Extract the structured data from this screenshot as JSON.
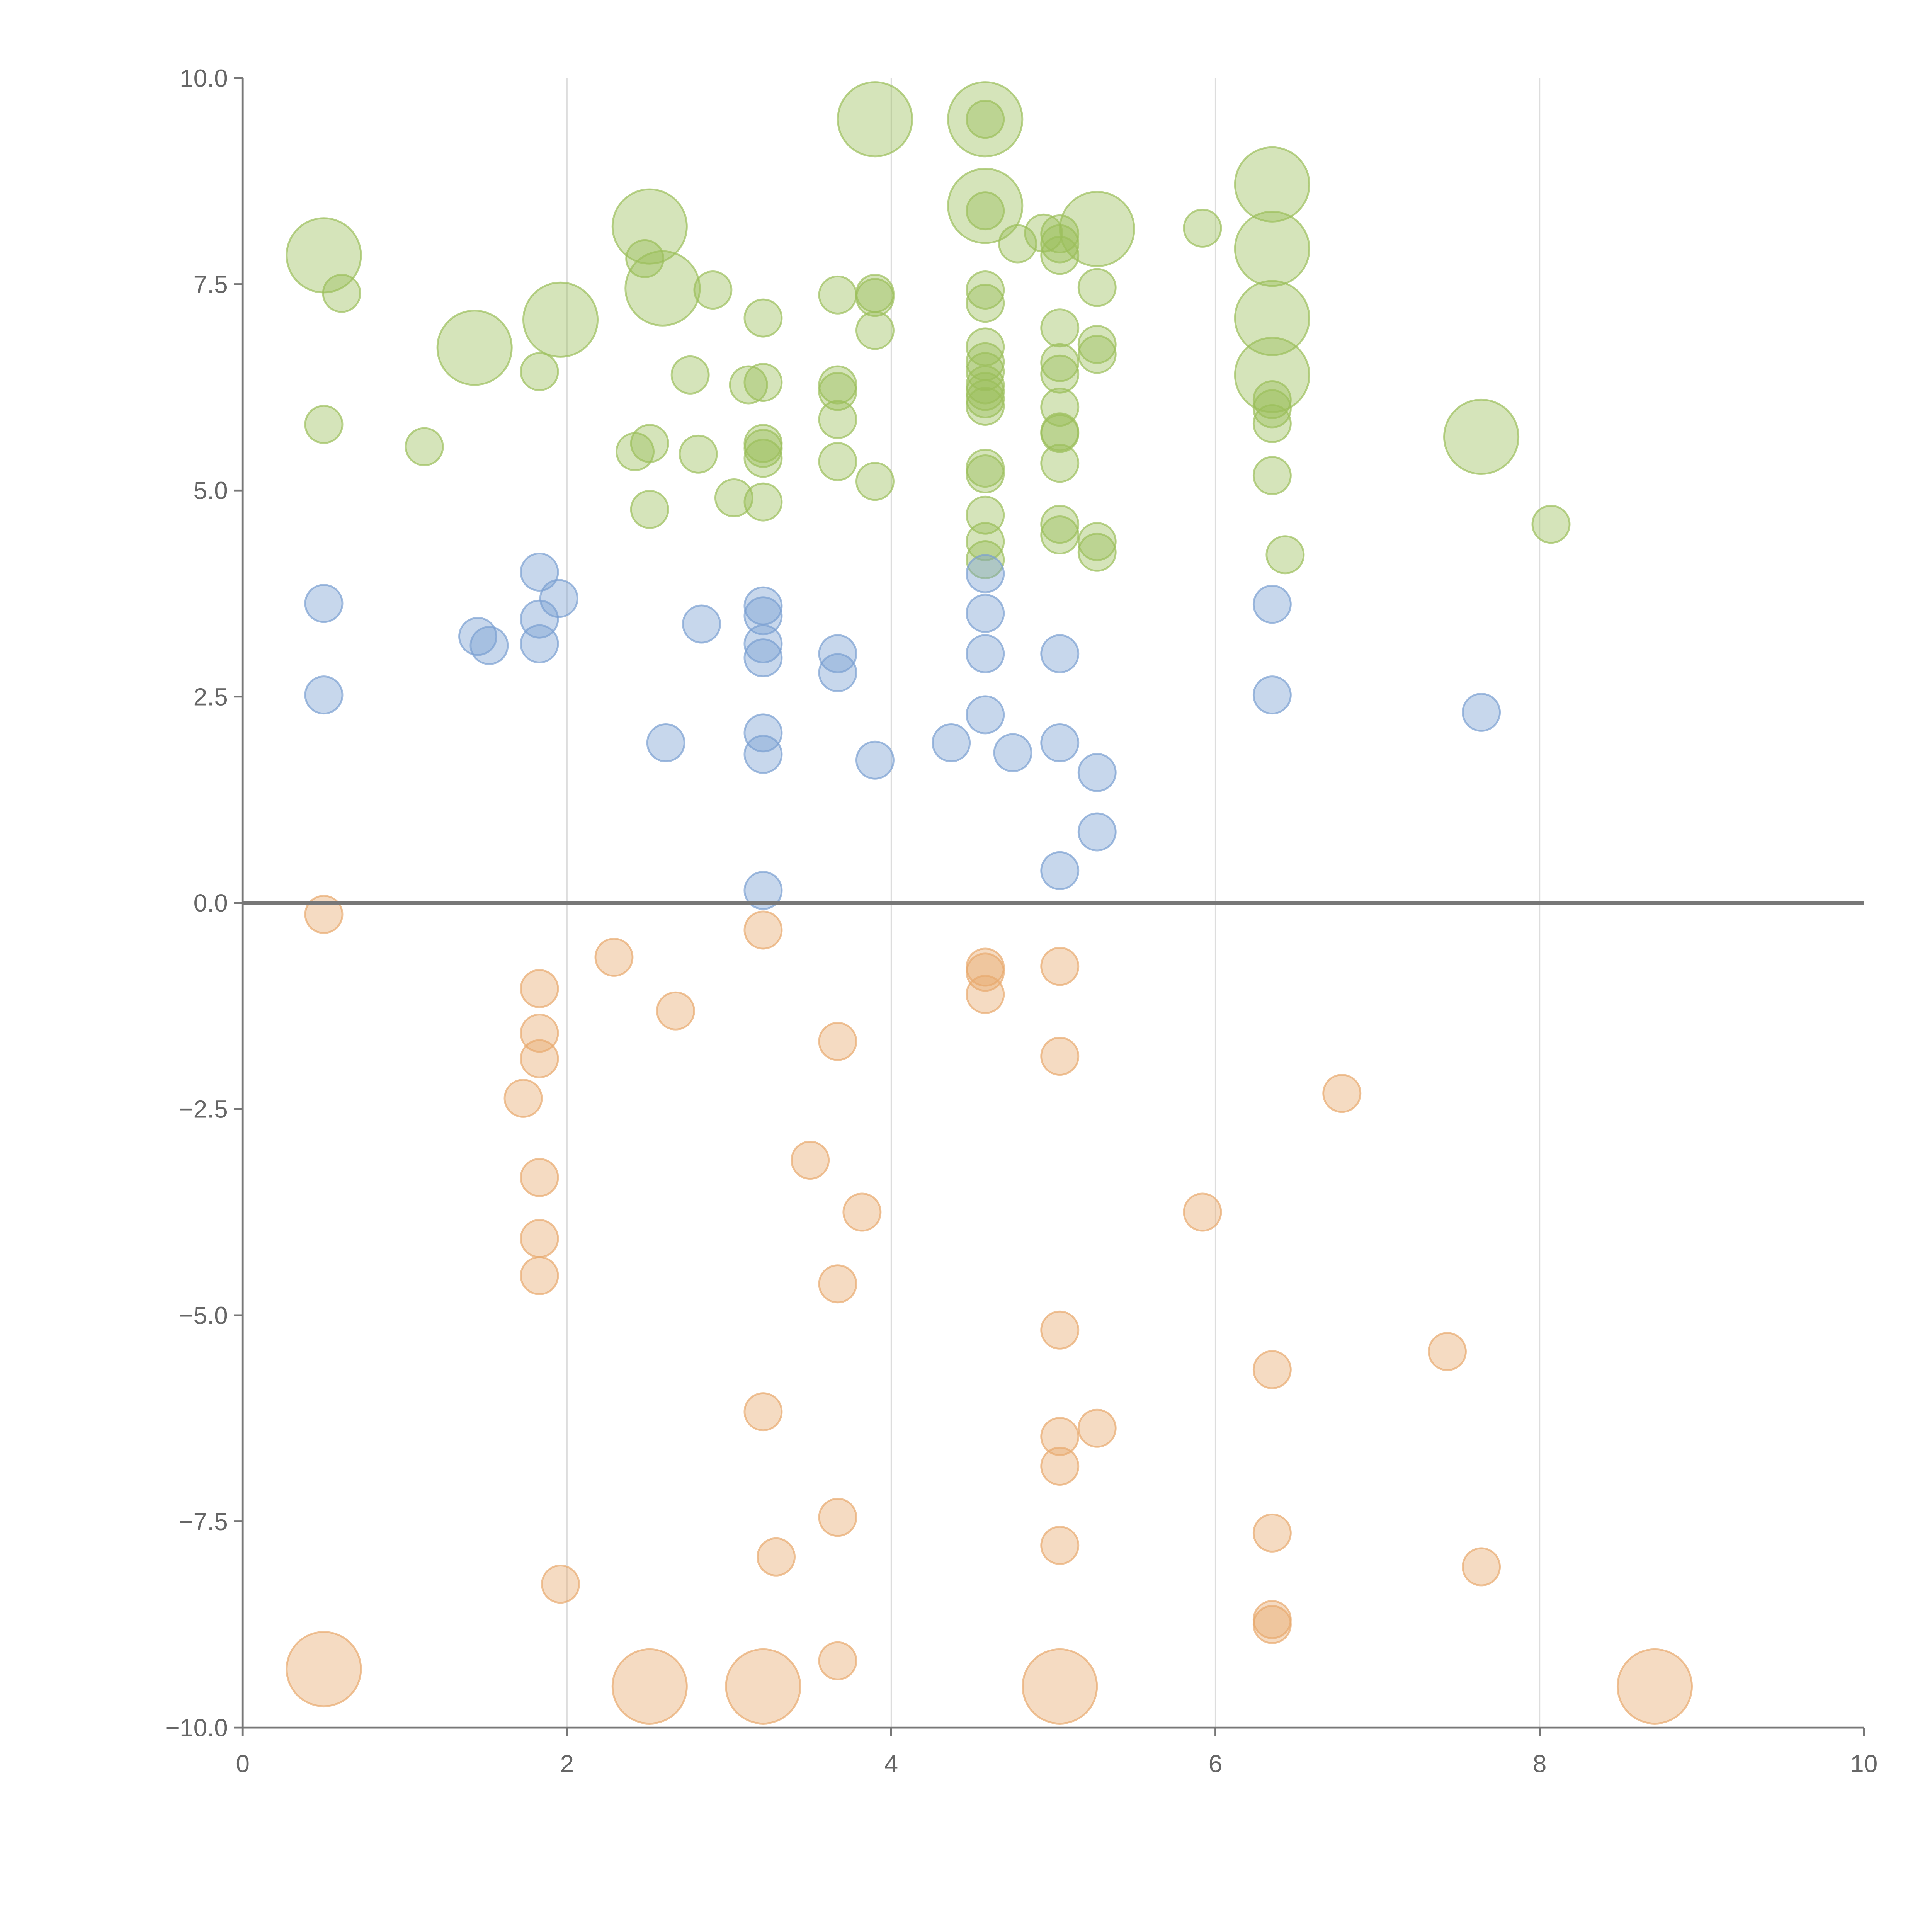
{
  "chart_data": {
    "type": "scatter",
    "title": "",
    "xlabel": "",
    "ylabel": "",
    "xlim": [
      0,
      10
    ],
    "ylim": [
      -10,
      10
    ],
    "grid": "vertical",
    "xticks": [
      "0",
      "2",
      "4",
      "6",
      "8",
      "10"
    ],
    "yticks": [
      "10.0",
      "7.5",
      "5.0",
      "2.5",
      "0.0",
      "−2.5",
      "−5.0",
      "−7.5",
      "−10.0"
    ],
    "xtick_values": [
      0,
      2,
      4,
      6,
      8,
      10
    ],
    "ytick_values": [
      10,
      7.5,
      5,
      2.5,
      0,
      -2.5,
      -5,
      -7.5,
      -10
    ],
    "point_format": [
      "x",
      "y",
      "size"
    ],
    "series": [
      {
        "name": "green",
        "color": "#9bbf5b",
        "points": [
          [
            0.5,
            7.85,
            4
          ],
          [
            0.61,
            7.39,
            1
          ],
          [
            0.5,
            5.8,
            1
          ],
          [
            1.12,
            5.53,
            1
          ],
          [
            1.43,
            6.73,
            4
          ],
          [
            1.83,
            6.44,
            1
          ],
          [
            1.96,
            7.07,
            4
          ],
          [
            2.42,
            5.47,
            1
          ],
          [
            2.51,
            5.57,
            1
          ],
          [
            2.51,
            4.77,
            1
          ],
          [
            2.51,
            8.2,
            4
          ],
          [
            2.48,
            7.81,
            1
          ],
          [
            2.59,
            7.45,
            4
          ],
          [
            2.76,
            6.4,
            1
          ],
          [
            2.81,
            5.44,
            1
          ],
          [
            2.9,
            7.43,
            1
          ],
          [
            3.03,
            4.91,
            1
          ],
          [
            3.12,
            6.28,
            1
          ],
          [
            3.21,
            7.09,
            1
          ],
          [
            3.21,
            6.31,
            1
          ],
          [
            3.21,
            5.57,
            1
          ],
          [
            3.21,
            5.51,
            1
          ],
          [
            3.21,
            5.39,
            1
          ],
          [
            3.21,
            4.86,
            1
          ],
          [
            3.67,
            7.37,
            1
          ],
          [
            3.67,
            6.28,
            1
          ],
          [
            3.67,
            6.2,
            1
          ],
          [
            3.67,
            5.86,
            1
          ],
          [
            3.67,
            5.35,
            1
          ],
          [
            3.9,
            9.5,
            4
          ],
          [
            3.9,
            7.39,
            1
          ],
          [
            3.9,
            7.34,
            1
          ],
          [
            3.9,
            6.94,
            1
          ],
          [
            3.9,
            5.11,
            1
          ],
          [
            4.58,
            9.5,
            4
          ],
          [
            4.58,
            9.5,
            1
          ],
          [
            4.58,
            8.45,
            4
          ],
          [
            4.58,
            8.39,
            1
          ],
          [
            4.58,
            7.43,
            1
          ],
          [
            4.58,
            7.27,
            1
          ],
          [
            4.58,
            6.74,
            1
          ],
          [
            4.58,
            6.56,
            1
          ],
          [
            4.58,
            6.44,
            1
          ],
          [
            4.58,
            6.28,
            1
          ],
          [
            4.58,
            6.2,
            1
          ],
          [
            4.58,
            6.11,
            1
          ],
          [
            4.58,
            6.02,
            1
          ],
          [
            4.58,
            5.27,
            1
          ],
          [
            4.58,
            5.2,
            1
          ],
          [
            4.58,
            4.7,
            1
          ],
          [
            4.58,
            4.38,
            1
          ],
          [
            4.58,
            4.16,
            1
          ],
          [
            4.78,
            7.99,
            1
          ],
          [
            4.94,
            8.12,
            1
          ],
          [
            5.04,
            8.11,
            1
          ],
          [
            5.04,
            7.99,
            1
          ],
          [
            5.04,
            7.85,
            1
          ],
          [
            5.04,
            6.97,
            1
          ],
          [
            5.04,
            6.55,
            1
          ],
          [
            5.04,
            6.41,
            1
          ],
          [
            5.04,
            6.01,
            1
          ],
          [
            5.04,
            5.71,
            1
          ],
          [
            5.04,
            5.69,
            1
          ],
          [
            5.04,
            5.33,
            1
          ],
          [
            5.04,
            4.59,
            1
          ],
          [
            5.04,
            4.46,
            1
          ],
          [
            5.27,
            8.17,
            4
          ],
          [
            5.27,
            7.46,
            1
          ],
          [
            5.27,
            6.77,
            1
          ],
          [
            5.27,
            6.65,
            1
          ],
          [
            5.27,
            4.38,
            1
          ],
          [
            5.27,
            4.25,
            1
          ],
          [
            5.92,
            8.18,
            1
          ],
          [
            6.35,
            8.71,
            4
          ],
          [
            6.35,
            7.93,
            4
          ],
          [
            6.35,
            7.09,
            4
          ],
          [
            6.35,
            6.4,
            4
          ],
          [
            6.35,
            6.1,
            1
          ],
          [
            6.35,
            5.99,
            1
          ],
          [
            6.35,
            5.81,
            1
          ],
          [
            6.35,
            5.18,
            1
          ],
          [
            6.43,
            4.22,
            1
          ],
          [
            7.64,
            5.65,
            4
          ],
          [
            8.07,
            4.59,
            1
          ]
        ]
      },
      {
        "name": "blue",
        "color": "#7a9fd1",
        "points": [
          [
            0.5,
            3.63,
            1
          ],
          [
            0.5,
            2.52,
            1
          ],
          [
            1.45,
            3.23,
            1
          ],
          [
            1.52,
            3.12,
            1
          ],
          [
            1.83,
            4.01,
            1
          ],
          [
            1.83,
            3.44,
            1
          ],
          [
            1.83,
            3.14,
            1
          ],
          [
            1.95,
            3.69,
            1
          ],
          [
            2.61,
            1.94,
            1
          ],
          [
            2.83,
            3.38,
            1
          ],
          [
            3.21,
            3.6,
            1
          ],
          [
            3.21,
            3.48,
            1
          ],
          [
            3.21,
            3.14,
            1
          ],
          [
            3.21,
            2.97,
            1
          ],
          [
            3.21,
            2.06,
            1
          ],
          [
            3.21,
            1.8,
            1
          ],
          [
            3.21,
            0.15,
            1
          ],
          [
            3.67,
            3.02,
            1
          ],
          [
            3.67,
            2.79,
            1
          ],
          [
            3.9,
            1.73,
            1
          ],
          [
            4.37,
            1.94,
            1
          ],
          [
            4.58,
            3.99,
            1
          ],
          [
            4.58,
            3.51,
            1
          ],
          [
            4.58,
            3.02,
            1
          ],
          [
            4.58,
            2.28,
            1
          ],
          [
            4.75,
            1.82,
            1
          ],
          [
            5.04,
            3.02,
            1
          ],
          [
            5.04,
            1.94,
            1
          ],
          [
            5.04,
            0.39,
            1
          ],
          [
            5.27,
            1.58,
            1
          ],
          [
            5.27,
            0.86,
            1
          ],
          [
            6.35,
            3.62,
            1
          ],
          [
            6.35,
            2.52,
            1
          ],
          [
            7.64,
            2.31,
            1
          ]
        ]
      },
      {
        "name": "orange",
        "color": "#e8a96e",
        "points": [
          [
            0.5,
            -0.14,
            1
          ],
          [
            2.29,
            -0.66,
            1
          ],
          [
            2.67,
            -1.31,
            1
          ],
          [
            3.21,
            -0.33,
            1
          ],
          [
            1.83,
            -1.04,
            1
          ],
          [
            1.83,
            -1.58,
            1
          ],
          [
            1.83,
            -1.89,
            1
          ],
          [
            1.73,
            -2.37,
            1
          ],
          [
            1.83,
            -3.33,
            1
          ],
          [
            1.83,
            -4.07,
            1
          ],
          [
            1.83,
            -4.52,
            1
          ],
          [
            1.96,
            -8.26,
            1
          ],
          [
            3.5,
            -3.12,
            1
          ],
          [
            3.67,
            -1.68,
            1
          ],
          [
            3.82,
            -3.75,
            1
          ],
          [
            3.67,
            -4.62,
            1
          ],
          [
            3.21,
            -6.17,
            1
          ],
          [
            3.29,
            -7.93,
            1
          ],
          [
            3.67,
            -7.45,
            1
          ],
          [
            3.67,
            -9.19,
            1
          ],
          [
            4.58,
            -0.78,
            1
          ],
          [
            4.58,
            -0.84,
            1
          ],
          [
            4.58,
            -1.11,
            1
          ],
          [
            5.04,
            -0.77,
            1
          ],
          [
            5.04,
            -1.86,
            1
          ],
          [
            5.04,
            -5.18,
            1
          ],
          [
            5.04,
            -6.47,
            1
          ],
          [
            5.04,
            -6.83,
            1
          ],
          [
            5.04,
            -7.79,
            1
          ],
          [
            5.27,
            -6.37,
            1
          ],
          [
            5.92,
            -3.75,
            1
          ],
          [
            6.35,
            -5.66,
            1
          ],
          [
            6.35,
            -7.64,
            1
          ],
          [
            6.35,
            -8.69,
            1
          ],
          [
            6.35,
            -8.75,
            1
          ],
          [
            6.78,
            -2.31,
            1
          ],
          [
            7.43,
            -5.44,
            1
          ],
          [
            7.64,
            -8.05,
            1
          ],
          [
            0.5,
            -9.29,
            4
          ],
          [
            2.51,
            -9.5,
            4
          ],
          [
            3.21,
            -9.5,
            4
          ],
          [
            5.04,
            -9.5,
            4
          ],
          [
            8.71,
            -9.5,
            4
          ]
        ]
      }
    ]
  }
}
